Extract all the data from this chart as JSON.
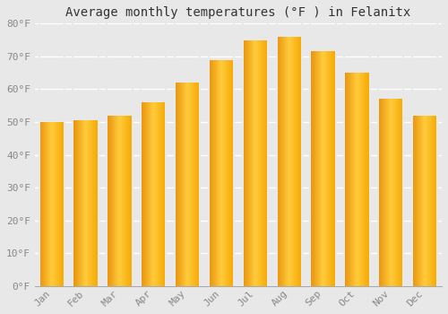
{
  "title": "Average monthly temperatures (°F ) in Felanitx",
  "months": [
    "Jan",
    "Feb",
    "Mar",
    "Apr",
    "May",
    "Jun",
    "Jul",
    "Aug",
    "Sep",
    "Oct",
    "Nov",
    "Dec"
  ],
  "values": [
    50.0,
    50.5,
    52.0,
    56.0,
    62.0,
    69.0,
    75.0,
    76.0,
    71.5,
    65.0,
    57.0,
    52.0
  ],
  "bar_color_left": "#E8920A",
  "bar_color_center": "#FFCB3C",
  "bar_color_right": "#F5A800",
  "ylim": [
    0,
    80
  ],
  "yticks": [
    0,
    10,
    20,
    30,
    40,
    50,
    60,
    70,
    80
  ],
  "ytick_labels": [
    "0°F",
    "10°F",
    "20°F",
    "30°F",
    "40°F",
    "50°F",
    "60°F",
    "70°F",
    "80°F"
  ],
  "background_color": "#e8e8e8",
  "plot_bg_color": "#e8e8e8",
  "grid_color": "#ffffff",
  "title_fontsize": 10,
  "tick_fontsize": 8,
  "bar_width": 0.75,
  "figsize": [
    5.0,
    3.5
  ],
  "dpi": 100
}
